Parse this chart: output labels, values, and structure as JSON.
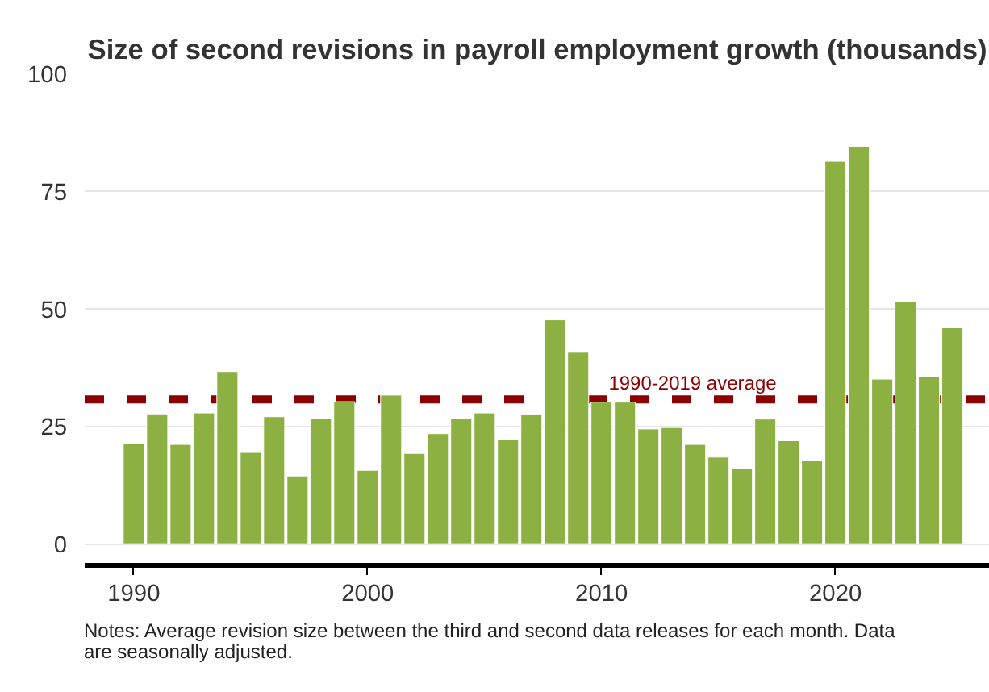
{
  "chart_data": {
    "type": "bar",
    "title": "Size of second revisions in payroll employment growth (thousands)",
    "x": [
      1990,
      1991,
      1992,
      1993,
      1994,
      1995,
      1996,
      1997,
      1998,
      1999,
      2000,
      2001,
      2002,
      2003,
      2004,
      2005,
      2006,
      2007,
      2008,
      2009,
      2010,
      2011,
      2012,
      2013,
      2014,
      2015,
      2016,
      2017,
      2018,
      2019,
      2020,
      2021,
      2022,
      2023,
      2024,
      2025
    ],
    "values": [
      21.3,
      27.6,
      21.1,
      27.8,
      36.6,
      19.4,
      27.0,
      14.4,
      26.7,
      30.2,
      15.6,
      31.6,
      19.2,
      23.4,
      26.7,
      27.8,
      22.2,
      27.5,
      47.6,
      40.7,
      30.1,
      30.1,
      24.4,
      24.7,
      21.1,
      18.4,
      15.9,
      26.5,
      21.9,
      17.6,
      81.3,
      84.5,
      35.0,
      51.4,
      35.5,
      45.9
    ],
    "color": "#8db042",
    "xlim": [
      1987.9,
      2026.6
    ],
    "xticks": [
      1990,
      2000,
      2010,
      2020
    ],
    "ylim": [
      -4.6,
      100
    ],
    "yticks": [
      0,
      25,
      50,
      75,
      100
    ],
    "grid": "y",
    "ref_lines": [
      {
        "axis": "y",
        "value": 30.7,
        "label": "1990-2019 average",
        "color": "#8b0000",
        "line_style": "dashed"
      }
    ],
    "annotations": [
      "Notes: Average revision size between the third and second data releases for each month. Data are seasonally adjusted."
    ]
  }
}
